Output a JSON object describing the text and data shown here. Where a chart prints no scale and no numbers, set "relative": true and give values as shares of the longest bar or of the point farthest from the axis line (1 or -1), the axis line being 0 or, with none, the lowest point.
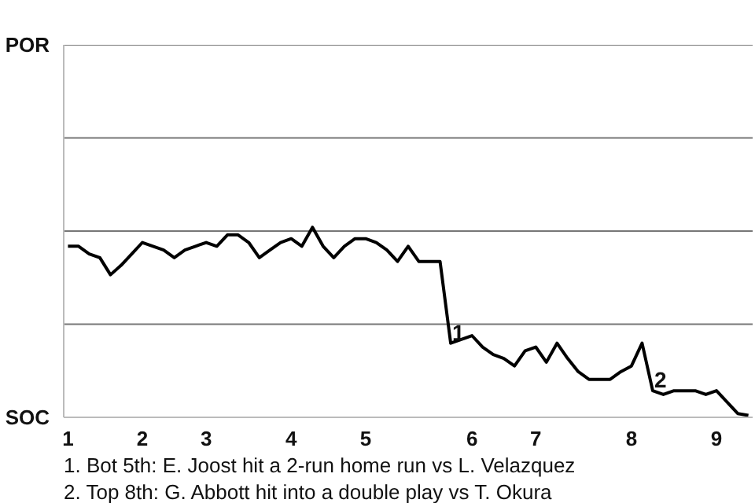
{
  "chart_data": {
    "type": "line",
    "relative": true,
    "ref_lines": [
      {
        "axis": "y",
        "value": 0.49,
        "color": "#777777"
      },
      {
        "axis": "y",
        "value": 0.98,
        "color": "#777777"
      },
      {
        "axis": "y",
        "value": 1.47,
        "color": "#777777"
      },
      {
        "axis": "y",
        "value": 1.96,
        "color": "#777777"
      }
    ],
    "categories": [
      "1",
      null,
      null,
      null,
      null,
      null,
      null,
      "2",
      null,
      null,
      null,
      null,
      null,
      "3",
      null,
      null,
      null,
      null,
      null,
      null,
      null,
      "4",
      null,
      null,
      null,
      null,
      null,
      null,
      "5",
      null,
      null,
      null,
      null,
      null,
      null,
      null,
      null,
      null,
      "6",
      null,
      null,
      null,
      null,
      null,
      "7",
      null,
      null,
      null,
      null,
      null,
      null,
      null,
      null,
      "8",
      null,
      null,
      null,
      null,
      null,
      null,
      null,
      "9",
      null,
      null,
      null
    ],
    "series": [
      {
        "color": "#000000",
        "values": [
          0.9,
          0.9,
          0.86,
          0.84,
          0.75,
          0.8,
          0.86,
          0.92,
          0.9,
          0.88,
          0.84,
          0.88,
          0.9,
          0.92,
          0.9,
          0.96,
          0.96,
          0.92,
          0.84,
          0.88,
          0.92,
          0.94,
          0.9,
          1,
          0.9,
          0.84,
          0.9,
          0.94,
          0.94,
          0.92,
          0.88,
          0.82,
          0.9,
          0.82,
          0.82,
          0.82,
          0.39,
          0.41,
          0.43,
          0.37,
          0.33,
          0.31,
          0.27,
          0.35,
          0.37,
          0.29,
          0.39,
          0.31,
          0.24,
          0.2,
          0.2,
          0.2,
          0.24,
          0.27,
          0.39,
          0.14,
          0.12,
          0.14,
          0.14,
          0.14,
          0.12,
          0.14,
          0.08,
          0.02,
          0.01
        ]
      }
    ],
    "annotations": [
      "POR",
      "SOC",
      "1",
      "2",
      "1. Bot 5th: E. Joost hit a 2-run home run vs L. Velazquez",
      "2. Top 8th: G. Abbott hit into a double play vs T. Okura"
    ]
  }
}
